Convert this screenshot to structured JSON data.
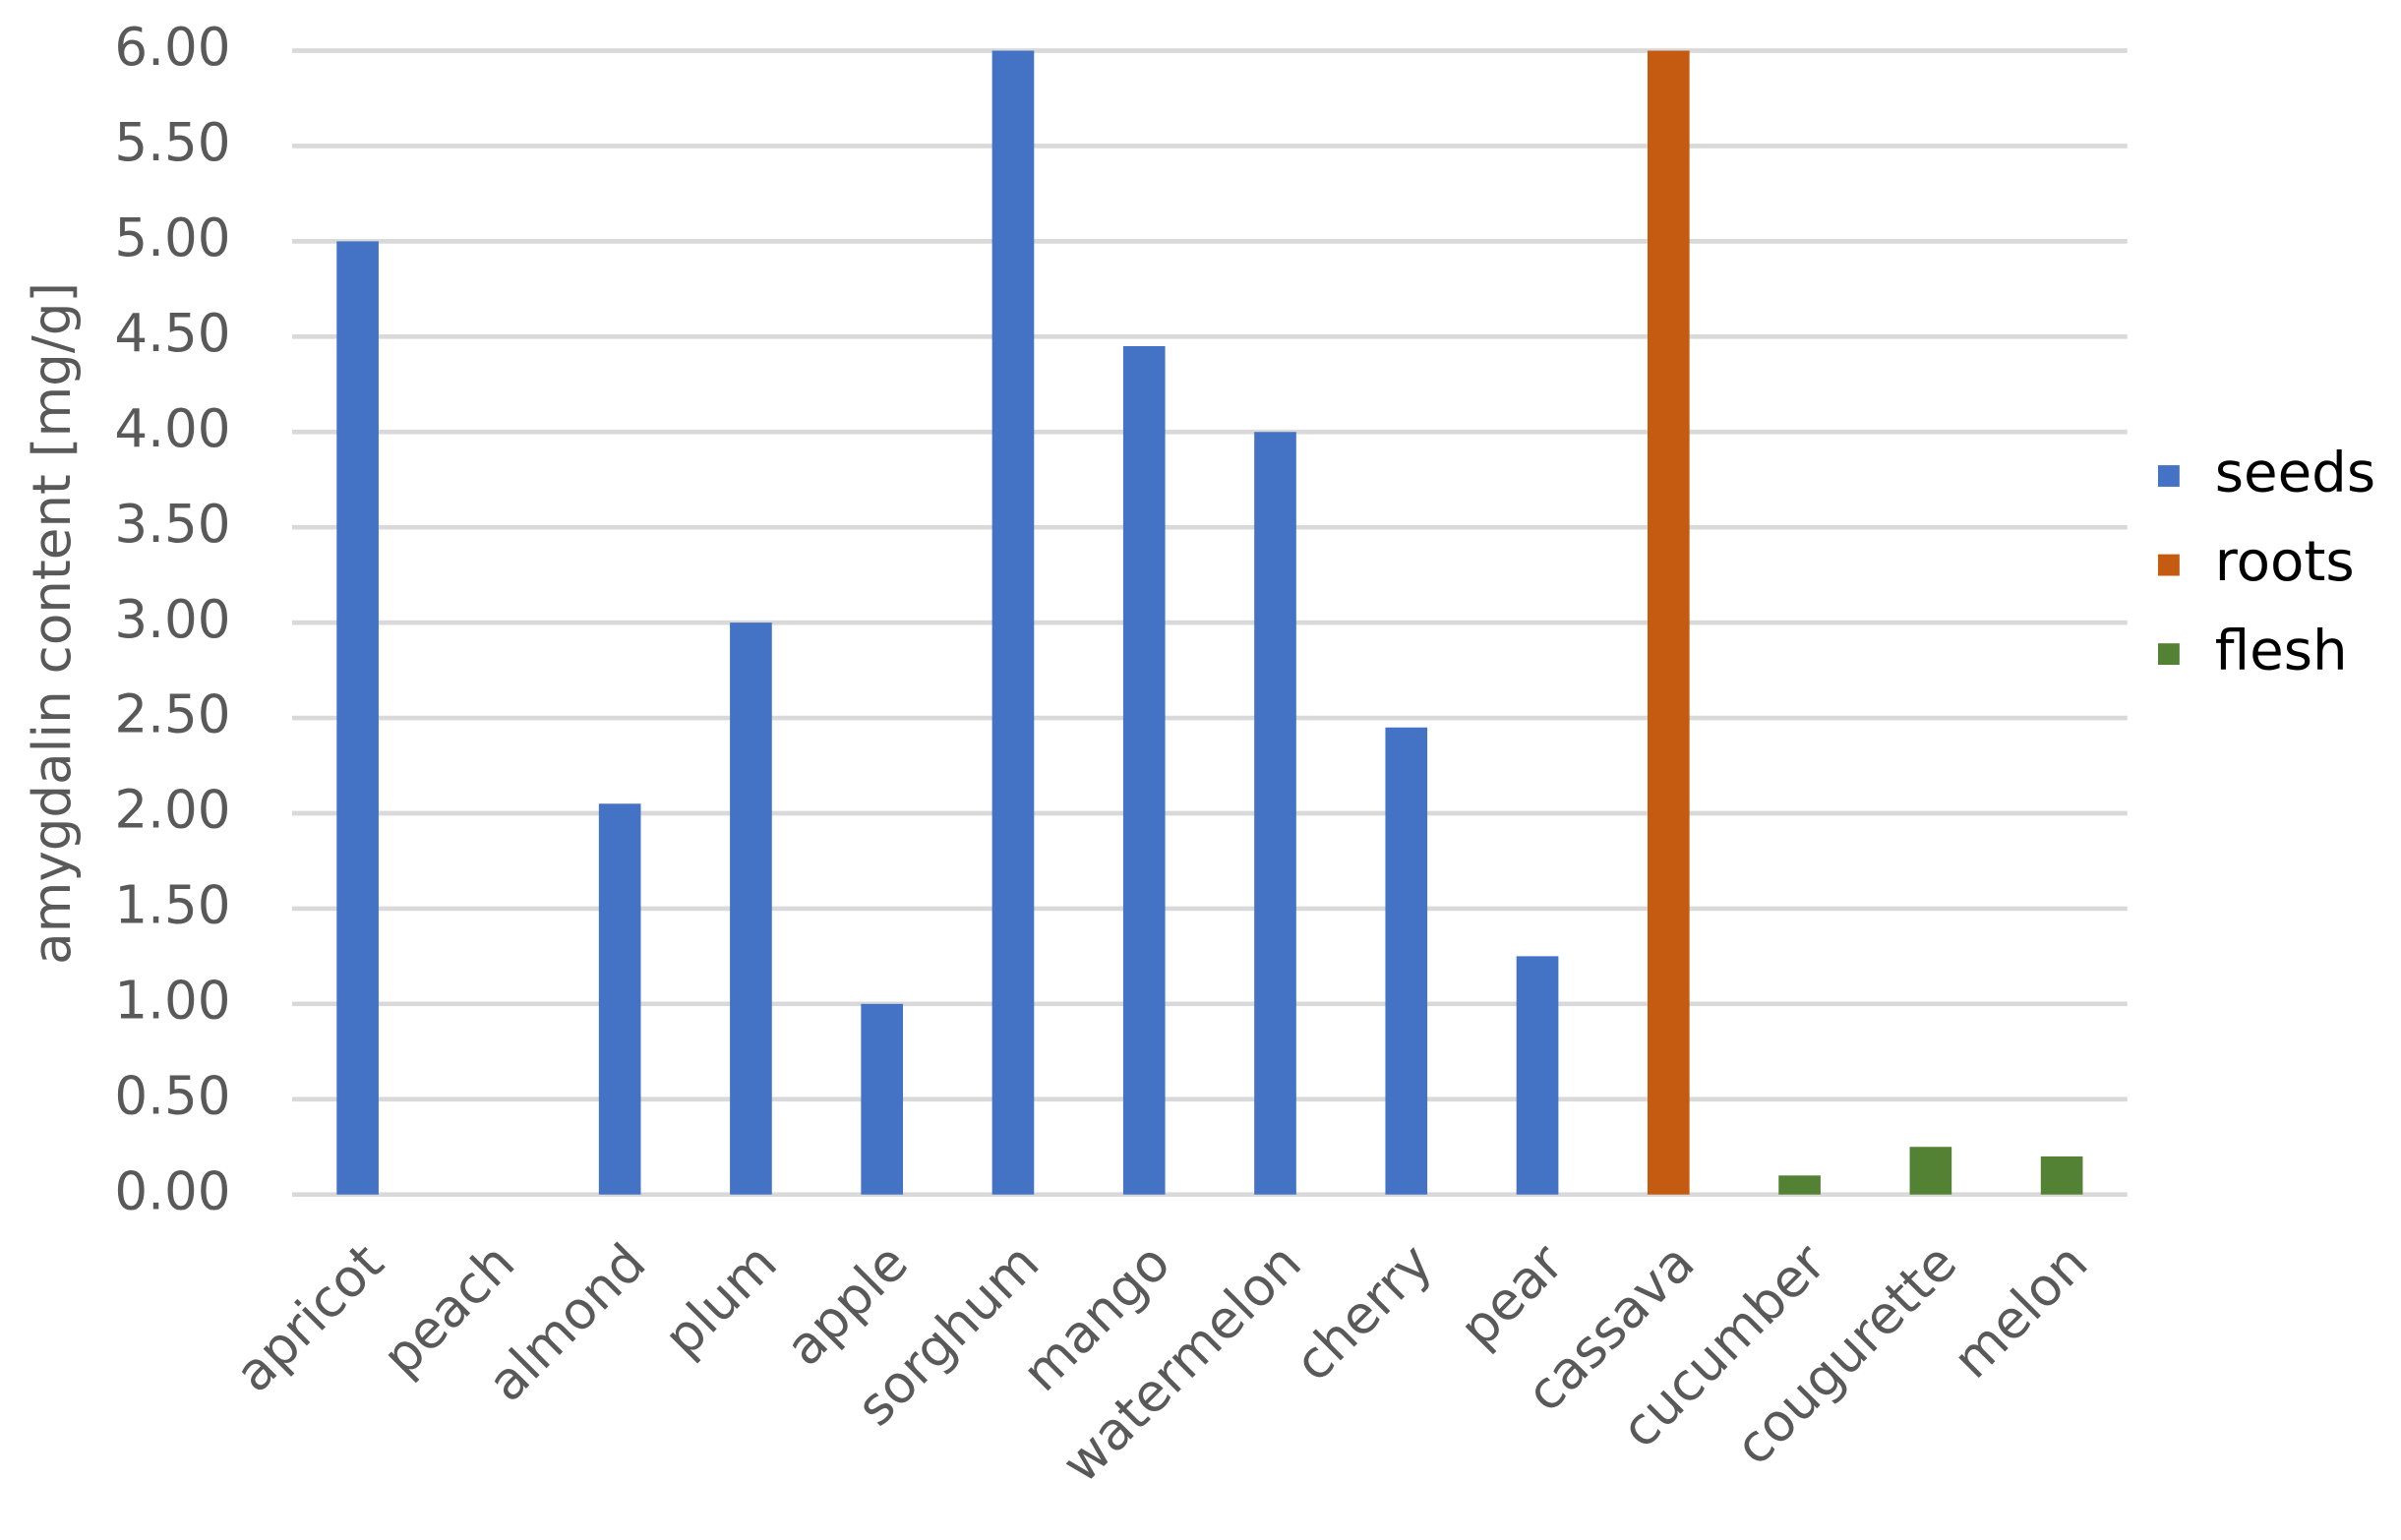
{
  "chart_data": {
    "type": "bar",
    "y_label": "amygdalin content [mg/g]",
    "categories": [
      "apricot",
      "peach",
      "almond",
      "plum",
      "apple",
      "sorghum",
      "mango",
      "watermelon",
      "cherry",
      "pear",
      "cassava",
      "cucumber",
      "cougurette",
      "melon"
    ],
    "series": [
      {
        "name": "seeds",
        "color": "#4472c4",
        "values": [
          5,
          0,
          2.05,
          3,
          1,
          6,
          4.45,
          4,
          2.45,
          1.25,
          null,
          null,
          null,
          null
        ]
      },
      {
        "name": "roots",
        "color": "#c55a11",
        "values": [
          null,
          null,
          null,
          null,
          null,
          null,
          null,
          null,
          null,
          null,
          6,
          null,
          null,
          null
        ]
      },
      {
        "name": "flesh",
        "color": "#548235",
        "values": [
          null,
          null,
          null,
          null,
          null,
          null,
          null,
          null,
          null,
          null,
          null,
          0.1,
          0.25,
          0.2
        ]
      }
    ],
    "ylim": [
      0,
      6
    ],
    "yticks": [
      {
        "value": 0,
        "label": "0.00"
      },
      {
        "value": 0.5,
        "label": "0.50"
      },
      {
        "value": 1,
        "label": "1.00"
      },
      {
        "value": 1.5,
        "label": "1.50"
      },
      {
        "value": 2,
        "label": "2.00"
      },
      {
        "value": 2.5,
        "label": "2.50"
      },
      {
        "value": 3,
        "label": "3.00"
      },
      {
        "value": 3.5,
        "label": "3.50"
      },
      {
        "value": 4,
        "label": "4.00"
      },
      {
        "value": 4.5,
        "label": "4.50"
      },
      {
        "value": 5,
        "label": "5.00"
      },
      {
        "value": 5.5,
        "label": "5.50"
      },
      {
        "value": 6,
        "label": "6.00"
      }
    ],
    "grid": true,
    "legend": "right"
  }
}
